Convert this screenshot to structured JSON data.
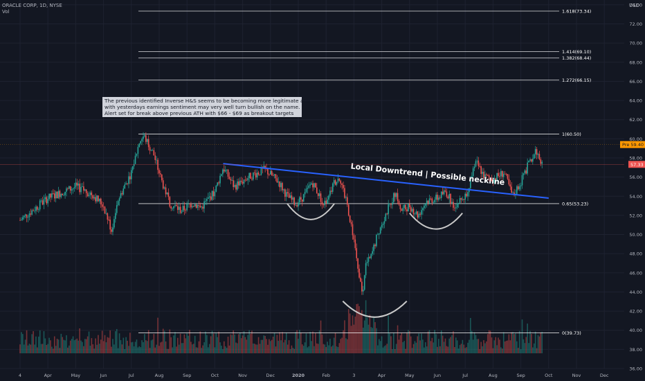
{
  "header": {
    "symbol_line": "ORACLE CORP, 1D, NYSE",
    "volume_label": "Vol",
    "currency": "USD"
  },
  "annotation": {
    "lines": [
      "The previous identified Inverse H&S seems to be becoming more legitimate and",
      "with yesterdays earnings sentiment may very well turn bullish on the name.",
      "Alert set for break above previous ATH with $66 - $69 as breakout targets"
    ]
  },
  "neckline_label": "Local Downtrend | Possible neckline",
  "colors": {
    "background": "#131722",
    "up": "#26a69a",
    "down": "#ef5350",
    "neckline": "#2962ff",
    "fib": "#ffffff",
    "arc": "#c9c9c9",
    "last_price_tag": "#ff9800",
    "ref_price_tag": "#ef5350"
  },
  "price_tags": {
    "last": {
      "prefix": "Pre",
      "value": "59.40"
    },
    "reference": {
      "value": "57.33"
    }
  },
  "chart_data": {
    "type": "candlestick",
    "y_axis": {
      "min": 36,
      "max": 74.5,
      "ticks": [
        "74.00",
        "72.00",
        "70.00",
        "68.00",
        "66.00",
        "64.00",
        "62.00",
        "60.00",
        "58.00",
        "56.00",
        "54.00",
        "52.00",
        "50.00",
        "48.00",
        "46.00",
        "44.00",
        "42.00",
        "40.00",
        "38.00",
        "36.00"
      ]
    },
    "x_axis": {
      "labels": [
        "4",
        "Apr",
        "May",
        "Jun",
        "Jul",
        "Aug",
        "Sep",
        "Oct",
        "Nov",
        "Dec",
        "2020",
        "Feb",
        "3",
        "Apr",
        "May",
        "Jun",
        "Jul",
        "Aug",
        "Sep",
        "Oct",
        "Nov",
        "Dec"
      ],
      "label_positions_month_index": [
        0,
        1,
        2,
        3,
        4,
        5,
        6,
        7,
        8,
        9,
        10,
        11,
        12,
        13,
        14,
        15,
        16,
        17,
        18,
        19,
        20,
        21
      ]
    },
    "fibonacci": [
      {
        "label": "1.618(73.34)",
        "value": 73.34
      },
      {
        "label": "1.414(69.10)",
        "value": 69.1
      },
      {
        "label": "1.382(68.44)",
        "value": 68.44
      },
      {
        "label": "1.272(66.15)",
        "value": 66.15
      },
      {
        "label": "1(60.50)",
        "value": 60.5
      },
      {
        "label": "0.65(53.23)",
        "value": 53.23
      },
      {
        "label": "0(39.73)",
        "value": 39.73
      }
    ],
    "price_path_anchors": [
      [
        0,
        51.5
      ],
      [
        1,
        53.8
      ],
      [
        2,
        55.0
      ],
      [
        2.6,
        54.2
      ],
      [
        3,
        53.0
      ],
      [
        3.3,
        50.3
      ],
      [
        3.5,
        53.5
      ],
      [
        4,
        56.5
      ],
      [
        4.3,
        59.8
      ],
      [
        4.45,
        60.3
      ],
      [
        4.8,
        58.4
      ],
      [
        5.1,
        55.5
      ],
      [
        5.4,
        53.2
      ],
      [
        5.8,
        52.5
      ],
      [
        6.2,
        53.3
      ],
      [
        6.5,
        52.8
      ],
      [
        7,
        54.5
      ],
      [
        7.3,
        57.0
      ],
      [
        7.7,
        55.0
      ],
      [
        8.2,
        56.0
      ],
      [
        8.8,
        56.8
      ],
      [
        9.3,
        55.5
      ],
      [
        9.6,
        54.0
      ],
      [
        9.9,
        53.2
      ],
      [
        10.2,
        54.0
      ],
      [
        10.5,
        55.5
      ],
      [
        10.8,
        53.8
      ],
      [
        11,
        53.0
      ],
      [
        11.3,
        55.5
      ],
      [
        11.5,
        56.0
      ],
      [
        11.8,
        52.5
      ],
      [
        12.0,
        49.5
      ],
      [
        12.15,
        46.0
      ],
      [
        12.3,
        44.0
      ],
      [
        12.45,
        47.0
      ],
      [
        12.6,
        47.5
      ],
      [
        12.9,
        50.5
      ],
      [
        13.2,
        52.5
      ],
      [
        13.5,
        54.5
      ],
      [
        13.7,
        52.5
      ],
      [
        14,
        53.0
      ],
      [
        14.3,
        52.0
      ],
      [
        14.6,
        53.5
      ],
      [
        15,
        53.8
      ],
      [
        15.3,
        54.5
      ],
      [
        15.6,
        53.0
      ],
      [
        16,
        54.0
      ],
      [
        16.4,
        57.5
      ],
      [
        16.7,
        56.0
      ],
      [
        17,
        55.8
      ],
      [
        17.4,
        56.5
      ],
      [
        17.7,
        54.0
      ],
      [
        18,
        55.5
      ],
      [
        18.3,
        57.5
      ],
      [
        18.55,
        58.8
      ],
      [
        18.8,
        57.0
      ]
    ],
    "volume": {
      "baseline_value_axis": 36,
      "typical_height_value": 39.5
    },
    "neckline": {
      "start": [
        7.3,
        57.4
      ],
      "end": [
        19.0,
        53.8
      ]
    },
    "arcs": [
      {
        "x1": 9.6,
        "x2": 11.3,
        "bottom": 51.5
      },
      {
        "x1": 11.6,
        "x2": 13.9,
        "bottom": 41.3
      },
      {
        "x1": 14.0,
        "x2": 15.9,
        "bottom": 50.5
      }
    ]
  }
}
